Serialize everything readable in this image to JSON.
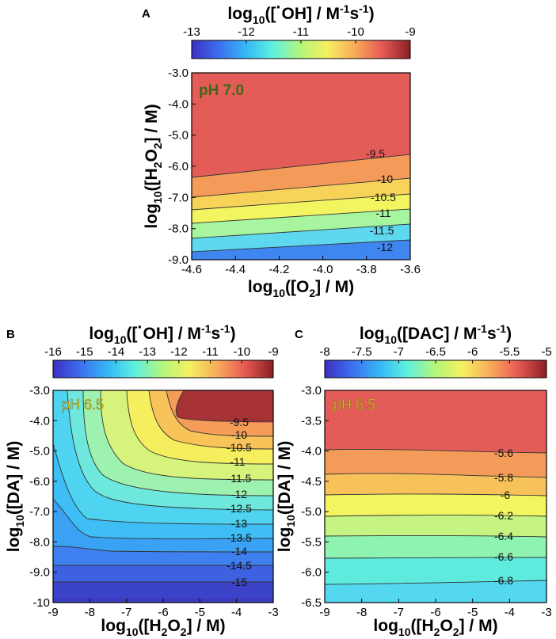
{
  "panels": [
    {
      "id": "A",
      "letter": "A",
      "colorbar": {
        "title_main": "log",
        "title_sub": "10",
        "title_post": "([",
        "title_dot": "·",
        "title_rest": "OH] / M",
        "title_sup1": "-1",
        "title_s": "s",
        "title_sup2": "-1",
        "title_close": ")",
        "ticks": [
          "-13",
          "-12",
          "-11",
          "-10",
          "-9"
        ],
        "range": [
          -13,
          -9
        ]
      },
      "annotation": "pH 7.0",
      "xaxis": {
        "label_main": "log",
        "label_sub10": "10",
        "label_pre": "([O",
        "label_sub": "2",
        "label_post": "] / M)",
        "ticks": [
          "-4.6",
          "-4.4",
          "-4.2",
          "-4.0",
          "-3.8",
          "-3.6"
        ],
        "range": [
          -4.6,
          -3.6
        ]
      },
      "yaxis": {
        "label_main": "log",
        "label_sub10": "10",
        "label_pre": "([H",
        "label_sub": "2",
        "label_mid": "O",
        "label_sub2": "2",
        "label_post": "] / M)",
        "ticks": [
          "-3.0",
          "-4.0",
          "-5.0",
          "-6.0",
          "-7.0",
          "-8.0",
          "-9.0"
        ],
        "range": [
          -9.0,
          -3.0
        ]
      },
      "contour_labels": [
        "-9.5",
        "-10",
        "-10.5",
        "-11",
        "-11.5",
        "-12"
      ]
    },
    {
      "id": "B",
      "letter": "B",
      "colorbar": {
        "title_main": "log",
        "title_sub": "10",
        "title_post": "([",
        "title_dot": "·",
        "title_rest": "OH] / M",
        "title_sup1": "-1",
        "title_s": "s",
        "title_sup2": "-1",
        "title_close": ")",
        "ticks": [
          "-16",
          "-15",
          "-14",
          "-13",
          "-12",
          "-11",
          "-10",
          "-9"
        ],
        "range": [
          -16,
          -9
        ]
      },
      "annotation": "pH 6.5",
      "xaxis": {
        "label_main": "log",
        "label_sub10": "10",
        "label_pre": "([H",
        "label_sub": "2",
        "label_mid": "O",
        "label_sub2": "2",
        "label_post": "] / M)",
        "ticks": [
          "-9",
          "-8",
          "-7",
          "-6",
          "-5",
          "-4",
          "-3"
        ],
        "range": [
          -9,
          -3
        ]
      },
      "yaxis": {
        "label_main": "log",
        "label_sub10": "10",
        "label_pre": "([DA] / M)",
        "ticks": [
          "-3.0",
          "-4.0",
          "-5.0",
          "-6.0",
          "-7.0",
          "-8.0",
          "-9.0",
          "-10"
        ],
        "range": [
          -10,
          -3
        ]
      },
      "contour_labels": [
        "-9.5",
        "-10",
        "-10.5",
        "-11",
        "-11.5",
        "-12",
        "-12.5",
        "-13",
        "-13.5",
        "-14",
        "-14.5",
        "-15"
      ]
    },
    {
      "id": "C",
      "letter": "C",
      "colorbar": {
        "title_main": "log",
        "title_sub": "10",
        "title_post": "([DAC] / M",
        "title_sup1": "-1",
        "title_s": "s",
        "title_sup2": "-1",
        "title_close": ")",
        "ticks": [
          "-8",
          "-7.5",
          "-7",
          "-6.5",
          "-6",
          "-5.5",
          "-5"
        ],
        "range": [
          -8,
          -5
        ]
      },
      "annotation": "pH 6.5",
      "xaxis": {
        "label_main": "log",
        "label_sub10": "10",
        "label_pre": "([H",
        "label_sub": "2",
        "label_mid": "O",
        "label_sub2": "2",
        "label_post": "] / M)",
        "ticks": [
          "-9",
          "-8",
          "-7",
          "-6",
          "-5",
          "-4",
          "-3"
        ],
        "range": [
          -9,
          -3
        ]
      },
      "yaxis": {
        "label_main": "log",
        "label_sub10": "10",
        "label_pre": "([DA] / M)",
        "ticks": [
          "-3.0",
          "-3.5",
          "-4.0",
          "-4.5",
          "-5.0",
          "-5.5",
          "-6.0",
          "-6.5"
        ],
        "range": [
          -6.5,
          -3.0
        ]
      },
      "contour_labels": [
        "-5.6",
        "-5.8",
        "-6",
        "-6.2",
        "-6.4",
        "-6.6",
        "-6.8"
      ]
    }
  ],
  "chart_data": [
    {
      "type": "heatmap",
      "panel": "A",
      "title": "log10([·OH] / M-1s-1)",
      "xlabel": "log10([O2] / M)",
      "ylabel": "log10([H2O2] / M)",
      "xlim": [
        -4.6,
        -3.6
      ],
      "ylim": [
        -9.0,
        -3.0
      ],
      "zlim": [
        -13,
        -9
      ],
      "annotation": "pH 7.0",
      "contour_levels": [
        -9.5,
        -10,
        -10.5,
        -11,
        -11.5,
        -12
      ],
      "contour_y_at_xmin": [
        -6.3,
        -6.95,
        -7.35,
        -7.8,
        -8.3,
        -8.8
      ],
      "contour_y_at_xmax": [
        -5.55,
        -6.15,
        -6.65,
        -7.15,
        -7.65,
        -8.15
      ],
      "band_values": [
        -9.35,
        -9.75,
        -10.25,
        -10.75,
        -11.25,
        -11.75,
        -12.25
      ]
    },
    {
      "type": "heatmap",
      "panel": "B",
      "title": "log10([·OH] / M-1s-1)",
      "xlabel": "log10([H2O2] / M)",
      "ylabel": "log10([DA] / M)",
      "xlim": [
        -9,
        -3
      ],
      "ylim": [
        -10,
        -3
      ],
      "zlim": [
        -16,
        -9
      ],
      "annotation": "pH 6.5",
      "contour_levels": [
        -9.5,
        -10,
        -10.5,
        -11,
        -11.5,
        -12,
        -12.5,
        -13,
        -13.5,
        -14,
        -14.5,
        -15
      ],
      "band_values": [
        -9.25,
        -9.75,
        -10.25,
        -10.75,
        -11.25,
        -11.75,
        -12.25,
        -12.75,
        -13.25,
        -13.75,
        -14.25,
        -14.75,
        -15.25
      ]
    },
    {
      "type": "heatmap",
      "panel": "C",
      "title": "log10([DAC] / M-1s-1)",
      "xlabel": "log10([H2O2] / M)",
      "ylabel": "log10([DA] / M)",
      "xlim": [
        -9,
        -3
      ],
      "ylim": [
        -6.5,
        -3.0
      ],
      "zlim": [
        -8,
        -5
      ],
      "annotation": "pH 6.5",
      "contour_levels": [
        -5.6,
        -5.8,
        -6,
        -6.2,
        -6.4,
        -6.6,
        -6.8
      ],
      "contour_y_at_xmin": [
        -3.95,
        -4.3,
        -4.65,
        -4.95,
        -5.3,
        -5.75,
        -6.25
      ],
      "contour_y_at_xmax": [
        -4.1,
        -4.45,
        -4.7,
        -5.0,
        -5.35,
        -5.7,
        -6.2
      ],
      "band_values": [
        -5.5,
        -5.7,
        -5.9,
        -6.1,
        -6.3,
        -6.5,
        -6.7,
        -6.9
      ]
    }
  ]
}
